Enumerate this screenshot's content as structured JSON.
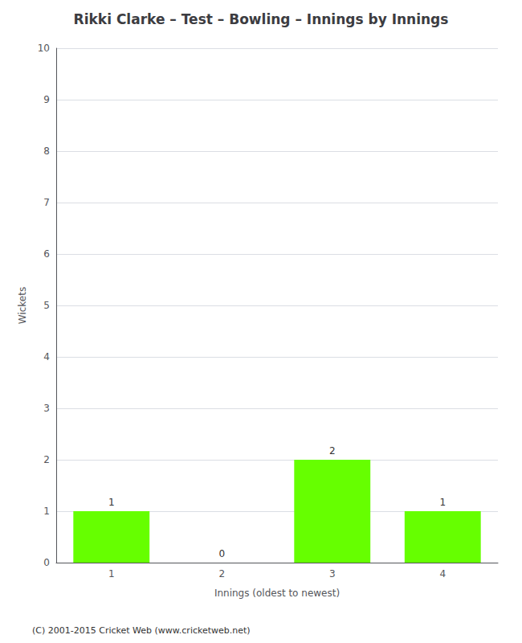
{
  "chart_data": {
    "type": "bar",
    "title": "Rikki Clarke – Test – Bowling – Innings by Innings",
    "x_label": "Innings (oldest to newest)",
    "y_label": "Wickets",
    "categories": [
      "1",
      "2",
      "3",
      "4"
    ],
    "values": [
      1,
      0,
      2,
      1
    ],
    "color": "#66ff00",
    "ylim": [
      0,
      10
    ],
    "yticks": [
      0,
      1,
      2,
      3,
      4,
      5,
      6,
      7,
      8,
      9,
      10
    ],
    "grid": true,
    "data_labels": true,
    "annotations": [
      "(C) 2001-2015 Cricket Web (www.cricketweb.net)"
    ]
  }
}
